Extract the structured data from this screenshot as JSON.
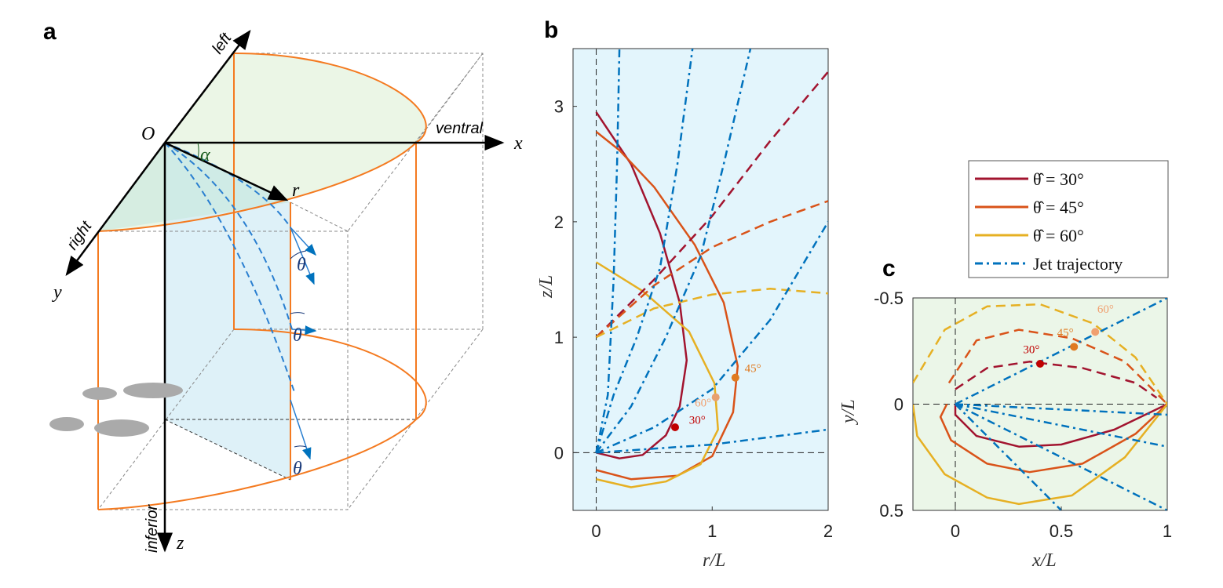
{
  "panels": {
    "a": "a",
    "b": "b",
    "c": "c"
  },
  "diagram": {
    "origin": "O",
    "x_axis": "x",
    "y_axis": "y",
    "z_axis": "z",
    "left": "left",
    "right": "right",
    "ventral": "ventral",
    "inferior": "inferior",
    "alpha": "α",
    "r": "r",
    "theta": "θ"
  },
  "colors": {
    "theta30": "#a2142f",
    "theta45": "#d95319",
    "theta60": "#e6b023",
    "jet": "#0072bd",
    "bg_b": "#e3f5fc",
    "bg_c": "#ebf6e8"
  },
  "legend": {
    "entries": [
      "θ̂ = 30°",
      "θ̂ = 45°",
      "θ̂ = 60°",
      "Jet trajectory"
    ]
  },
  "chart_data": [
    {
      "type": "line",
      "panel": "b",
      "xlabel": "r/L",
      "ylabel": "z/L",
      "xlim": [
        -0.2,
        2
      ],
      "ylim": [
        3.5,
        -0.5
      ],
      "xticks": [
        "0",
        "1",
        "2"
      ],
      "yticks": [
        "0",
        "1",
        "2",
        "3"
      ],
      "annotations": [
        "30°",
        "60°",
        "45°"
      ],
      "series": [
        {
          "name": "θ̂ = 30°",
          "style": "solid",
          "color": "#a2142f",
          "points": [
            [
              0,
              0
            ],
            [
              0.2,
              -0.05
            ],
            [
              0.4,
              -0.02
            ],
            [
              0.6,
              0.15
            ],
            [
              0.72,
              0.4
            ],
            [
              0.78,
              0.8
            ],
            [
              0.72,
              1.3
            ],
            [
              0.55,
              1.9
            ],
            [
              0.3,
              2.5
            ],
            [
              0,
              2.95
            ]
          ]
        },
        {
          "name": "θ̂ = 45°",
          "style": "solid",
          "color": "#d95319",
          "points": [
            [
              0,
              -0.15
            ],
            [
              0.3,
              -0.23
            ],
            [
              0.7,
              -0.2
            ],
            [
              1.0,
              -0.03
            ],
            [
              1.18,
              0.35
            ],
            [
              1.22,
              0.75
            ],
            [
              1.1,
              1.3
            ],
            [
              0.85,
              1.8
            ],
            [
              0.5,
              2.3
            ],
            [
              0.2,
              2.62
            ],
            [
              0,
              2.78
            ]
          ]
        },
        {
          "name": "θ̂ = 60°",
          "style": "solid",
          "color": "#e6b023",
          "points": [
            [
              0,
              -0.23
            ],
            [
              0.3,
              -0.3
            ],
            [
              0.6,
              -0.25
            ],
            [
              0.9,
              -0.1
            ],
            [
              1.05,
              0.2
            ],
            [
              1.02,
              0.6
            ],
            [
              0.8,
              1.05
            ],
            [
              0.4,
              1.4
            ],
            [
              0,
              1.65
            ]
          ]
        },
        {
          "style": "dashed",
          "color": "#a2142f",
          "points": [
            [
              0,
              1
            ],
            [
              0.5,
              1.5
            ],
            [
              1,
              2.05
            ],
            [
              1.5,
              2.7
            ],
            [
              2,
              3.3
            ]
          ]
        },
        {
          "style": "dashed",
          "color": "#d95319",
          "points": [
            [
              0,
              1
            ],
            [
              0.5,
              1.45
            ],
            [
              1,
              1.78
            ],
            [
              1.5,
              2.0
            ],
            [
              2,
              2.18
            ]
          ]
        },
        {
          "style": "dashed",
          "color": "#e6b023",
          "points": [
            [
              0,
              1
            ],
            [
              0.5,
              1.25
            ],
            [
              1,
              1.37
            ],
            [
              1.5,
              1.42
            ],
            [
              2,
              1.38
            ]
          ]
        },
        {
          "name": "Jet trajectory",
          "style": "dashdot",
          "color": "#0072bd",
          "points": [
            [
              0,
              0
            ],
            [
              0.1,
              0.5
            ],
            [
              0.15,
              1.5
            ],
            [
              0.18,
              2.5
            ],
            [
              0.2,
              3.5
            ]
          ]
        },
        {
          "style": "dashdot",
          "color": "#0072bd",
          "points": [
            [
              0,
              0
            ],
            [
              0.15,
              0.5
            ],
            [
              0.35,
              1.0
            ],
            [
              0.55,
              1.6
            ],
            [
              0.7,
              2.5
            ],
            [
              0.83,
              3.5
            ]
          ]
        },
        {
          "style": "dashdot",
          "color": "#0072bd",
          "points": [
            [
              0,
              0
            ],
            [
              0.3,
              0.4
            ],
            [
              0.6,
              1.0
            ],
            [
              0.9,
              1.7
            ],
            [
              1.1,
              2.5
            ],
            [
              1.33,
              3.5
            ]
          ]
        },
        {
          "style": "dashdot",
          "color": "#0072bd",
          "points": [
            [
              0,
              0
            ],
            [
              0.5,
              0.22
            ],
            [
              1,
              0.55
            ],
            [
              1.5,
              1.15
            ],
            [
              2,
              2.0
            ]
          ]
        },
        {
          "style": "dashdot",
          "color": "#0072bd",
          "points": [
            [
              0,
              0
            ],
            [
              1,
              0.07
            ],
            [
              2,
              0.2
            ]
          ]
        }
      ]
    },
    {
      "type": "line",
      "panel": "c",
      "xlabel": "x/L",
      "ylabel": "y/L",
      "xlim": [
        -0.2,
        1
      ],
      "ylim": [
        -0.5,
        0.5
      ],
      "xticks": [
        "0",
        "0.5",
        "1"
      ],
      "yticks": [
        "-0.5",
        "0",
        "0.5"
      ],
      "annotations": [
        "30°",
        "45°",
        "60°"
      ],
      "series": [
        {
          "name": "θ̂ = 30°",
          "style": "solid",
          "color": "#a2142f",
          "points": [
            [
              0,
              0
            ],
            [
              0,
              0.05
            ],
            [
              0.1,
              0.15
            ],
            [
              0.3,
              0.2
            ],
            [
              0.5,
              0.19
            ],
            [
              0.75,
              0.12
            ],
            [
              1,
              0
            ]
          ]
        },
        {
          "name": "θ̂ = 45°",
          "style": "solid",
          "color": "#d95319",
          "points": [
            [
              -0.04,
              0
            ],
            [
              -0.07,
              0.06
            ],
            [
              -0.02,
              0.17
            ],
            [
              0.15,
              0.28
            ],
            [
              0.35,
              0.32
            ],
            [
              0.6,
              0.28
            ],
            [
              0.85,
              0.14
            ],
            [
              1,
              0
            ]
          ]
        },
        {
          "name": "θ̂ = 60°",
          "style": "solid",
          "color": "#e6b023",
          "points": [
            [
              -0.2,
              0
            ],
            [
              -0.18,
              0.15
            ],
            [
              -0.05,
              0.33
            ],
            [
              0.15,
              0.44
            ],
            [
              0.3,
              0.47
            ],
            [
              0.55,
              0.43
            ],
            [
              0.8,
              0.25
            ],
            [
              1,
              0
            ]
          ]
        },
        {
          "style": "dashed",
          "color": "#a2142f",
          "points": [
            [
              0,
              -0.07
            ],
            [
              0.15,
              -0.17
            ],
            [
              0.35,
              -0.2
            ],
            [
              0.6,
              -0.17
            ],
            [
              0.85,
              -0.1
            ],
            [
              0.95,
              -0.03
            ]
          ]
        },
        {
          "style": "dashed",
          "color": "#d95319",
          "points": [
            [
              -0.03,
              -0.1
            ],
            [
              0.1,
              -0.3
            ],
            [
              0.3,
              -0.35
            ],
            [
              0.55,
              -0.31
            ],
            [
              0.8,
              -0.2
            ],
            [
              0.95,
              -0.05
            ],
            [
              1,
              0
            ]
          ]
        },
        {
          "style": "dashed",
          "color": "#e6b023",
          "points": [
            [
              -0.2,
              -0.1
            ],
            [
              -0.05,
              -0.35
            ],
            [
              0.15,
              -0.46
            ],
            [
              0.4,
              -0.47
            ],
            [
              0.65,
              -0.38
            ],
            [
              0.85,
              -0.22
            ],
            [
              1,
              0
            ]
          ]
        },
        {
          "name": "Jet trajectory",
          "style": "dashdot",
          "color": "#0072bd",
          "points": [
            [
              0,
              0
            ],
            [
              1,
              -0.5
            ]
          ]
        },
        {
          "style": "dashdot",
          "color": "#0072bd",
          "points": [
            [
              0,
              0
            ],
            [
              1,
              0.05
            ]
          ]
        },
        {
          "style": "dashdot",
          "color": "#0072bd",
          "points": [
            [
              0,
              0
            ],
            [
              1,
              0.2
            ]
          ]
        },
        {
          "style": "dashdot",
          "color": "#0072bd",
          "points": [
            [
              0,
              0
            ],
            [
              1,
              0.5
            ]
          ]
        },
        {
          "style": "dashdot",
          "color": "#0072bd",
          "points": [
            [
              0,
              0
            ],
            [
              0.5,
              0.5
            ]
          ]
        }
      ]
    }
  ]
}
